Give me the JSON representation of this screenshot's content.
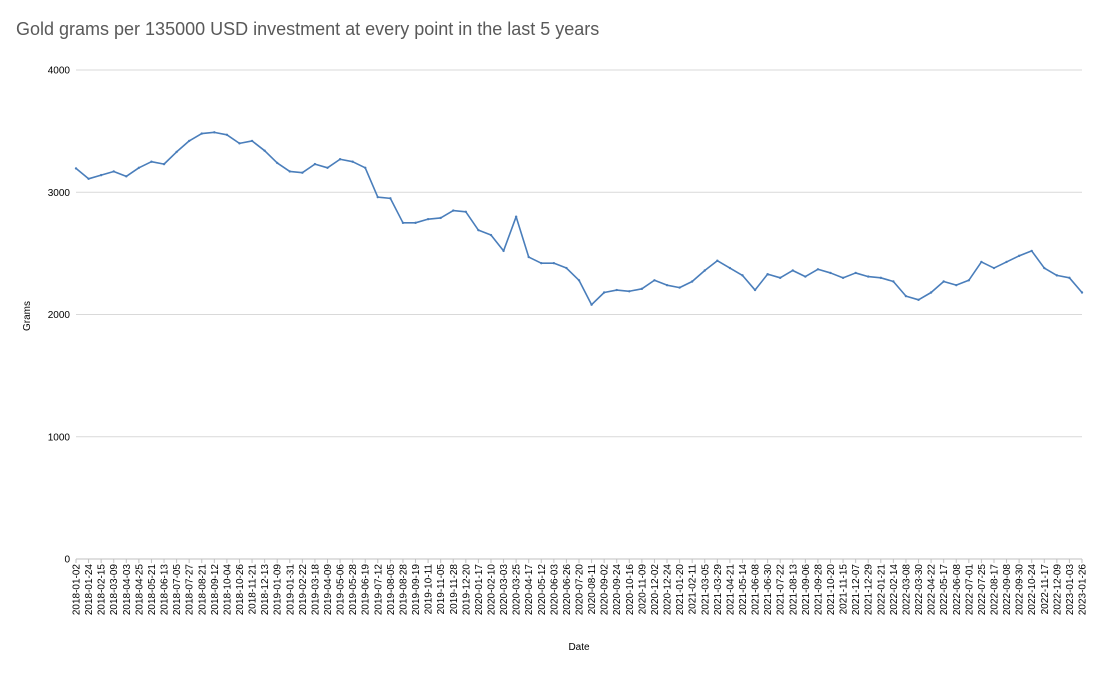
{
  "chart_data": {
    "type": "line",
    "title": "Gold grams per 135000 USD investment at every point in the last 5 years",
    "xlabel": "Date",
    "ylabel": "Grams",
    "ylim": [
      0,
      4000
    ],
    "y_ticks": [
      "0",
      "1000",
      "2000",
      "3000",
      "4000"
    ],
    "grid": "horizontal",
    "legend": "none",
    "line_color": "#4a7ebb",
    "categories": [
      "2018-01-02",
      "2018-01-24",
      "2018-02-15",
      "2018-03-09",
      "2018-04-03",
      "2018-04-25",
      "2018-05-21",
      "2018-06-13",
      "2018-07-05",
      "2018-07-27",
      "2018-08-21",
      "2018-09-12",
      "2018-10-04",
      "2018-10-26",
      "2018-11-21",
      "2018-12-13",
      "2019-01-09",
      "2019-01-31",
      "2019-02-22",
      "2019-03-18",
      "2019-04-09",
      "2019-05-06",
      "2019-05-28",
      "2019-06-19",
      "2019-07-12",
      "2019-08-05",
      "2019-08-28",
      "2019-09-19",
      "2019-10-11",
      "2019-11-05",
      "2019-11-28",
      "2019-12-20",
      "2020-01-17",
      "2020-02-10",
      "2020-03-03",
      "2020-03-25",
      "2020-04-17",
      "2020-05-12",
      "2020-06-03",
      "2020-06-26",
      "2020-07-20",
      "2020-08-11",
      "2020-09-02",
      "2020-09-24",
      "2020-10-16",
      "2020-11-09",
      "2020-12-02",
      "2020-12-24",
      "2021-01-20",
      "2021-02-11",
      "2021-03-05",
      "2021-03-29",
      "2021-04-21",
      "2021-05-14",
      "2021-06-08",
      "2021-06-30",
      "2021-07-22",
      "2021-08-13",
      "2021-09-06",
      "2021-09-28",
      "2021-10-20",
      "2021-11-15",
      "2021-12-07",
      "2021-12-29",
      "2022-01-21",
      "2022-02-14",
      "2022-03-08",
      "2022-03-30",
      "2022-04-22",
      "2022-05-17",
      "2022-06-08",
      "2022-07-01",
      "2022-07-25",
      "2022-08-17",
      "2022-09-08",
      "2022-09-30",
      "2022-10-24",
      "2022-11-17",
      "2022-12-09",
      "2023-01-03",
      "2023-01-26"
    ],
    "values": [
      3195,
      3110,
      3140,
      3170,
      3130,
      3200,
      3250,
      3230,
      3330,
      3420,
      3480,
      3490,
      3470,
      3400,
      3420,
      3340,
      3240,
      3170,
      3160,
      3230,
      3200,
      3270,
      3250,
      3200,
      2960,
      2950,
      2750,
      2750,
      2780,
      2790,
      2850,
      2840,
      2690,
      2650,
      2520,
      2800,
      2470,
      2420,
      2420,
      2380,
      2280,
      2080,
      2180,
      2200,
      2190,
      2210,
      2280,
      2240,
      2220,
      2270,
      2360,
      2440,
      2380,
      2320,
      2200,
      2330,
      2300,
      2360,
      2310,
      2370,
      2340,
      2300,
      2340,
      2310,
      2300,
      2270,
      2150,
      2120,
      2180,
      2270,
      2240,
      2280,
      2430,
      2380,
      2430,
      2480,
      2520,
      2380,
      2320,
      2300,
      2180
    ]
  }
}
